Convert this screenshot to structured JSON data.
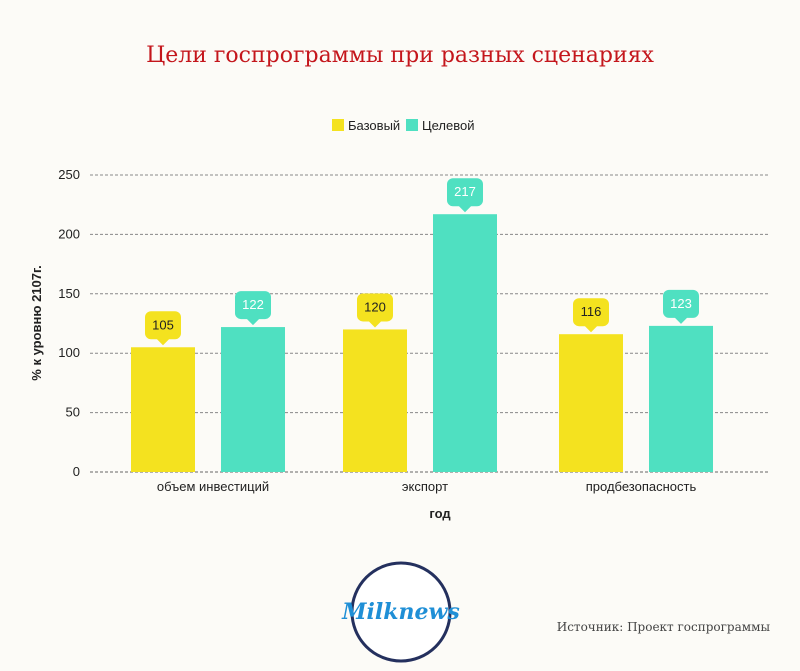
{
  "title": "Цели госпрограммы при разных сценариях",
  "source": "Источник: Проект госпрограммы",
  "logo_text": "Milknews",
  "colors": {
    "title": "#c4161c",
    "base": "#f4e21f",
    "target": "#4fe0c1",
    "logo_ring": "#24305e",
    "logo_text": "#1f8fd6"
  },
  "chart_data": {
    "type": "bar",
    "title": "Цели госпрограммы при разных сценариях",
    "xlabel": "год",
    "ylabel": "% к уровню 2107г.",
    "categories": [
      "объем инвестиций",
      "экспорт",
      "продбезопасность"
    ],
    "series": [
      {
        "name": "Базовый",
        "color": "#f4e21f",
        "values": [
          105,
          120,
          116
        ]
      },
      {
        "name": "Целевой",
        "color": "#4fe0c1",
        "values": [
          122,
          217,
          123
        ]
      }
    ],
    "ylim": [
      0,
      250
    ],
    "yticks": [
      0,
      50,
      100,
      150,
      200,
      250
    ],
    "grid": true,
    "legend": "top-center",
    "data_labels": true
  }
}
